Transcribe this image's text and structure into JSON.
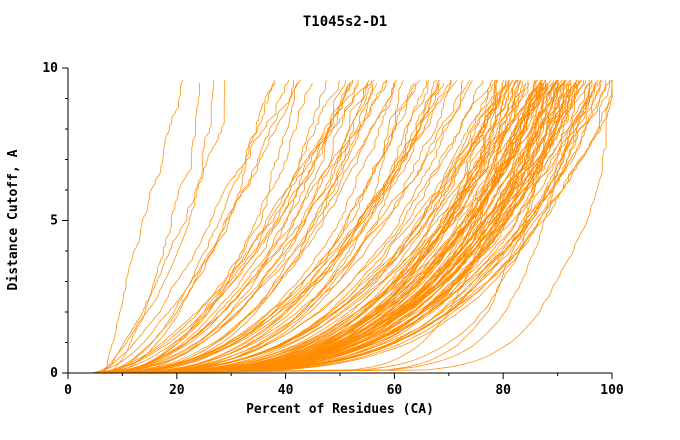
{
  "chart_data": {
    "type": "line",
    "title": "T1045s2-D1",
    "xlabel": "Percent of Residues (CA)",
    "ylabel": "Distance Cutoff, A",
    "xlim": [
      0,
      100
    ],
    "ylim": [
      0,
      10
    ],
    "x_ticks": [
      0,
      20,
      40,
      60,
      80,
      100
    ],
    "y_ticks": [
      0,
      5,
      10
    ],
    "x_minor_step": 10,
    "y_minor_step": 1,
    "grid": false,
    "legend": "none",
    "background": "#FFFFFF",
    "axis_color": "#000000",
    "line_color": "#FF8C00",
    "series_summary": "Approximately 150 overlapping cumulative distance-cutoff curves (one per predicted model). Each curve rises monotonically from about 4-8% of residues at 0 A cutoff toward its maximum coverage near the 9.7 A top of the plotted range. Most curves reach 80-100% coverage; a minority of poorer models terminate between roughly 22% and 80%.",
    "curves": {
      "count": 150,
      "seed": 11,
      "y_max": 9.7,
      "x_start_range": [
        4,
        8
      ],
      "end_x_distribution": [
        {
          "weight": 0.12,
          "range": [
            22,
            48
          ]
        },
        {
          "weight": 0.22,
          "range": [
            48,
            80
          ]
        },
        {
          "weight": 0.66,
          "range": [
            80,
            100
          ]
        }
      ],
      "elite_fraction": 0.08,
      "elite_extra_power": 7,
      "noise_amplitude": 0.9,
      "noise_clamp": 2.5
    }
  }
}
